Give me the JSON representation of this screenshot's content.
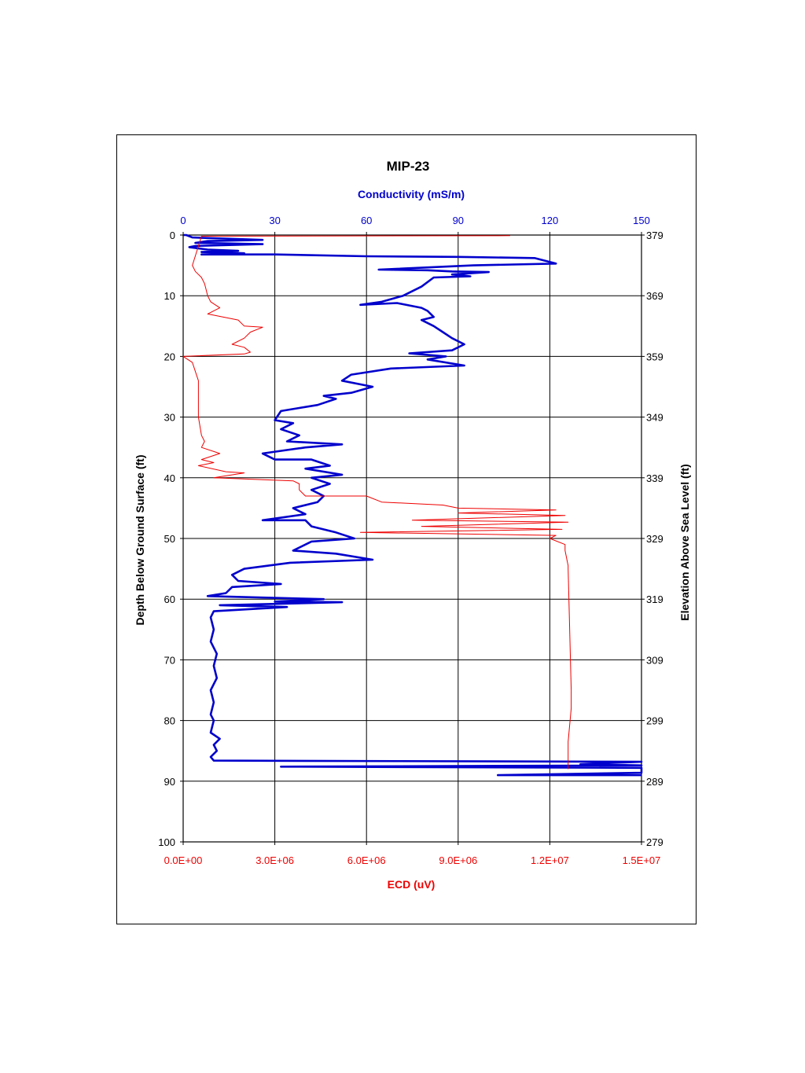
{
  "chart_data": {
    "type": "line",
    "title": "MIP-23",
    "x_top_label": "Conductivity (mS/m)",
    "x_bottom_label": "ECD (uV)",
    "y_left_label": "Depth Below Ground Surface (ft)",
    "y_right_label": "Elevation Above Sea Level (ft)",
    "x_top_range": [
      0,
      150
    ],
    "x_top_ticks": [
      "0",
      "30",
      "60",
      "90",
      "120",
      "150"
    ],
    "x_bottom_range": [
      0,
      15000000
    ],
    "x_bottom_ticks": [
      "0.0E+00",
      "3.0E+06",
      "6.0E+06",
      "9.0E+06",
      "1.2E+07",
      "1.5E+07"
    ],
    "y_left_range": [
      0,
      100
    ],
    "y_left_ticks": [
      "0",
      "10",
      "20",
      "30",
      "40",
      "50",
      "60",
      "70",
      "80",
      "90",
      "100"
    ],
    "y_right_ticks": [
      "379",
      "369",
      "359",
      "349",
      "339",
      "329",
      "319",
      "309",
      "299",
      "289",
      "279"
    ],
    "grid": true,
    "series": [
      {
        "axis": "conductivity",
        "color": "#0000cc",
        "points": [
          [
            0,
            0
          ],
          [
            1,
            0
          ],
          [
            3,
            0.4
          ],
          [
            26,
            0.8
          ],
          [
            8,
            1
          ],
          [
            4,
            1.3
          ],
          [
            26,
            1.5
          ],
          [
            4,
            1.8
          ],
          [
            2,
            2
          ],
          [
            8,
            2.4
          ],
          [
            18,
            2.6
          ],
          [
            6,
            2.8
          ],
          [
            20,
            3
          ],
          [
            6,
            3.2
          ],
          [
            30,
            3.2
          ],
          [
            60,
            3.5
          ],
          [
            90,
            3.6
          ],
          [
            115,
            3.8
          ],
          [
            122,
            4.7
          ],
          [
            95,
            5
          ],
          [
            64,
            5.7
          ],
          [
            80,
            5.8
          ],
          [
            88,
            6
          ],
          [
            100,
            6.1
          ],
          [
            88,
            6.5
          ],
          [
            94,
            6.8
          ],
          [
            82,
            7
          ],
          [
            78,
            8.5
          ],
          [
            72,
            10
          ],
          [
            65,
            11
          ],
          [
            58,
            11.5
          ],
          [
            70,
            11.2
          ],
          [
            78,
            12
          ],
          [
            80,
            12.5
          ],
          [
            82,
            13.5
          ],
          [
            78,
            14
          ],
          [
            82,
            15
          ],
          [
            85,
            16
          ],
          [
            88,
            17
          ],
          [
            92,
            18
          ],
          [
            88,
            19
          ],
          [
            74,
            19.5
          ],
          [
            86,
            20
          ],
          [
            80,
            20.5
          ],
          [
            92,
            21.5
          ],
          [
            68,
            22
          ],
          [
            55,
            23
          ],
          [
            52,
            24
          ],
          [
            62,
            25
          ],
          [
            55,
            26
          ],
          [
            46,
            26.5
          ],
          [
            50,
            27
          ],
          [
            44,
            28
          ],
          [
            38,
            28.5
          ],
          [
            32,
            29
          ],
          [
            30,
            30.5
          ],
          [
            36,
            31
          ],
          [
            32,
            32
          ],
          [
            38,
            33
          ],
          [
            34,
            34
          ],
          [
            52,
            34.5
          ],
          [
            40,
            35
          ],
          [
            26,
            36
          ],
          [
            30,
            37
          ],
          [
            42,
            37
          ],
          [
            48,
            38
          ],
          [
            40,
            38.5
          ],
          [
            52,
            39.5
          ],
          [
            42,
            40
          ],
          [
            48,
            41
          ],
          [
            42,
            42
          ],
          [
            46,
            43
          ],
          [
            44,
            44
          ],
          [
            36,
            45
          ],
          [
            40,
            46
          ],
          [
            26,
            47
          ],
          [
            40,
            47
          ],
          [
            42,
            48
          ],
          [
            50,
            49
          ],
          [
            56,
            50
          ],
          [
            42,
            50.5
          ],
          [
            36,
            52
          ],
          [
            50,
            52.5
          ],
          [
            62,
            53.5
          ],
          [
            35,
            54
          ],
          [
            20,
            55
          ],
          [
            16,
            56
          ],
          [
            18,
            57
          ],
          [
            32,
            57.5
          ],
          [
            16,
            58
          ],
          [
            14,
            59
          ],
          [
            8,
            59.5
          ],
          [
            46,
            60
          ],
          [
            30,
            60.4
          ],
          [
            52,
            60.5
          ],
          [
            12,
            61
          ],
          [
            34,
            61.3
          ],
          [
            10,
            62
          ],
          [
            9,
            63
          ],
          [
            10,
            65
          ],
          [
            9,
            67
          ],
          [
            11,
            69
          ],
          [
            10,
            71
          ],
          [
            11,
            73
          ],
          [
            9,
            75
          ],
          [
            10,
            77
          ],
          [
            9,
            79
          ],
          [
            10,
            80
          ],
          [
            9,
            82
          ],
          [
            12,
            83
          ],
          [
            10,
            84
          ],
          [
            11,
            85
          ],
          [
            9,
            86
          ],
          [
            10,
            86.6
          ],
          [
            150,
            86.8
          ],
          [
            130,
            87.2
          ],
          [
            150,
            87.4
          ],
          [
            32,
            87.6
          ],
          [
            150,
            87.8
          ],
          [
            150,
            88.2
          ],
          [
            150,
            88.6
          ],
          [
            103,
            89
          ],
          [
            150,
            89
          ]
        ]
      },
      {
        "axis": "ecd",
        "color": "#ee0000",
        "points": [
          [
            10700000,
            0.1
          ],
          [
            600000,
            0.2
          ],
          [
            300000,
            5
          ],
          [
            400000,
            6
          ],
          [
            600000,
            7
          ],
          [
            700000,
            8
          ],
          [
            750000,
            9
          ],
          [
            800000,
            10
          ],
          [
            900000,
            11
          ],
          [
            1200000,
            12
          ],
          [
            800000,
            13
          ],
          [
            1800000,
            14
          ],
          [
            2000000,
            15
          ],
          [
            2600000,
            15.2
          ],
          [
            2200000,
            16
          ],
          [
            2000000,
            17
          ],
          [
            1600000,
            18
          ],
          [
            2000000,
            18.5
          ],
          [
            2200000,
            19.3
          ],
          [
            2000000,
            19.6
          ],
          [
            0,
            20
          ],
          [
            300000,
            21
          ],
          [
            500000,
            24
          ],
          [
            500000,
            27
          ],
          [
            500000,
            30
          ],
          [
            600000,
            33
          ],
          [
            700000,
            34
          ],
          [
            600000,
            35
          ],
          [
            1200000,
            36
          ],
          [
            600000,
            37
          ],
          [
            1000000,
            37.5
          ],
          [
            500000,
            38
          ],
          [
            1400000,
            39
          ],
          [
            2000000,
            39.2
          ],
          [
            1000000,
            40
          ],
          [
            3600000,
            40.5
          ],
          [
            3800000,
            41
          ],
          [
            3800000,
            42
          ],
          [
            4000000,
            43
          ],
          [
            6000000,
            43
          ],
          [
            6500000,
            44
          ],
          [
            8500000,
            44.5
          ],
          [
            9000000,
            45
          ],
          [
            12200000,
            45.3
          ],
          [
            9000000,
            45.8
          ],
          [
            12500000,
            46.2
          ],
          [
            7500000,
            47
          ],
          [
            12600000,
            47.3
          ],
          [
            7800000,
            48
          ],
          [
            12400000,
            48.5
          ],
          [
            5800000,
            49
          ],
          [
            12200000,
            49.5
          ],
          [
            12000000,
            50
          ],
          [
            12500000,
            51
          ],
          [
            12500000,
            52
          ],
          [
            12600000,
            54.5
          ],
          [
            12600000,
            55
          ],
          [
            12700000,
            75
          ],
          [
            12700000,
            78
          ],
          [
            12600000,
            83.5
          ],
          [
            12600000,
            88
          ]
        ]
      }
    ]
  }
}
